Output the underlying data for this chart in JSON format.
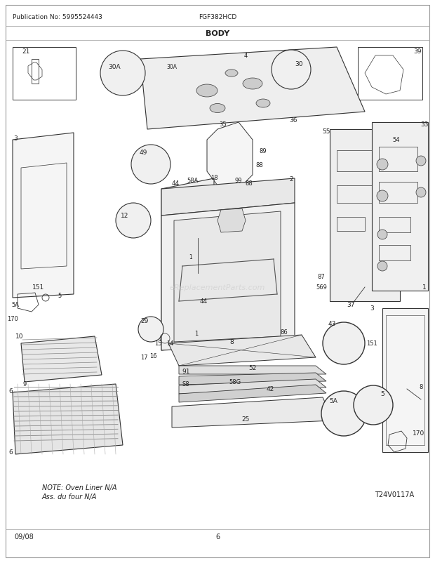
{
  "title": "BODY",
  "pub_no": "Publication No: 5995524443",
  "model": "FGF382HCD",
  "date": "09/08",
  "page": "6",
  "watermark": "eReplacementParts.com",
  "ref_code": "T24V0117A",
  "note_line1": "NOTE: Oven Liner N/A",
  "note_line2": "Ass. du four N/A",
  "bg_color": "#ffffff",
  "text_color": "#222222",
  "fig_width": 6.2,
  "fig_height": 8.03,
  "dpi": 100
}
